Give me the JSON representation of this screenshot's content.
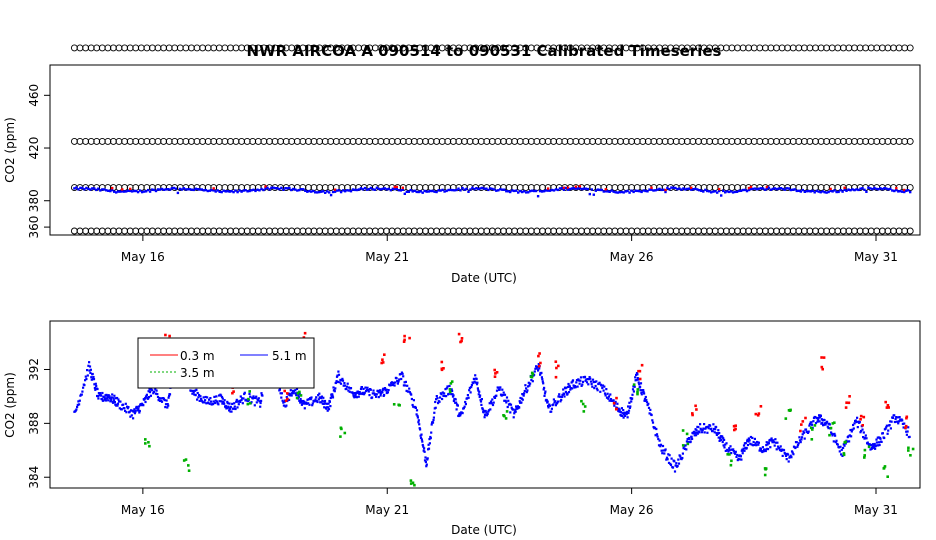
{
  "figure": {
    "title": "NWR   AIRCOA  A    090514  to  090531   Calibrated Timeseries"
  },
  "colors": {
    "calibration": "#000000",
    "inlet_0_3m": "#ff0000",
    "inlet_3_5m": "#00b000",
    "inlet_5_1m": "#0000ff",
    "frame": "#000000",
    "background": "#ffffff"
  },
  "chart_data": [
    {
      "type": "scatter",
      "title": "NWR   AIRCOA  A    090514  to  090531   Calibrated Timeseries",
      "xlabel": "Date (UTC)",
      "ylabel": "CO2 (ppm)",
      "x_ticks": [
        "May 16",
        "May 21",
        "May 26",
        "May 31"
      ],
      "x_tick_days": [
        16,
        21,
        26,
        31
      ],
      "xlim_days": [
        14.1,
        31.9
      ],
      "y_ticks": [
        360,
        380,
        420,
        460
      ],
      "ylim": [
        354,
        483
      ],
      "grid": false,
      "legend": "none",
      "series": [
        {
          "name": "",
          "role": "calibration",
          "marker": "open-circle",
          "y": 496,
          "x_range_days": [
            14.6,
            31.7
          ]
        },
        {
          "name": "",
          "role": "calibration",
          "marker": "open-circle",
          "y": 425,
          "x_range_days": [
            14.6,
            31.7
          ]
        },
        {
          "name": "",
          "role": "calibration",
          "marker": "open-circle",
          "y": 390,
          "x_range_days": [
            14.6,
            31.7
          ]
        },
        {
          "name": "",
          "role": "calibration",
          "marker": "open-circle",
          "y": 357,
          "x_range_days": [
            14.6,
            31.7
          ]
        },
        {
          "name": "",
          "role": "ambient",
          "marker": "dot",
          "y_approx": 388,
          "x_range_days": [
            14.6,
            31.7
          ]
        }
      ]
    },
    {
      "type": "scatter",
      "xlabel": "Date (UTC)",
      "ylabel": "CO2 (ppm)",
      "x_ticks": [
        "May 16",
        "May 21",
        "May 26",
        "May 31"
      ],
      "x_tick_days": [
        16,
        21,
        26,
        31
      ],
      "xlim_days": [
        14.1,
        31.9
      ],
      "y_ticks": [
        384,
        388,
        392
      ],
      "ylim": [
        383.2,
        395.6
      ],
      "grid": false,
      "legend": "top-left",
      "legend_entries": [
        "0.3 m",
        "5.1 m",
        "3.5 m"
      ],
      "series": [
        {
          "name": "5.1 m",
          "color": "#0000ff",
          "x_days": [
            14.6,
            14.9,
            15.1,
            15.3,
            15.5,
            15.8,
            16.0,
            16.2,
            16.5,
            16.7,
            17.0,
            17.3,
            17.6,
            17.8,
            18.1,
            18.4,
            18.6,
            18.9,
            19.1,
            19.3,
            19.6,
            19.8,
            20.0,
            20.3,
            20.5,
            20.8,
            21.0,
            21.3,
            21.6,
            21.8,
            22.0,
            22.3,
            22.5,
            22.8,
            23.0,
            23.3,
            23.6,
            23.8,
            24.1,
            24.3,
            24.6,
            24.8,
            25.1,
            25.4,
            25.7,
            25.9,
            26.1,
            26.3,
            26.6,
            26.9,
            27.2,
            27.4,
            27.7,
            27.9,
            28.2,
            28.4,
            28.7,
            28.9,
            29.2,
            29.5,
            29.8,
            30.0,
            30.3,
            30.6,
            30.9,
            31.1,
            31.4,
            31.7
          ],
          "y": [
            388.6,
            392.2,
            389.9,
            390.0,
            389.5,
            388.7,
            389.4,
            390.6,
            389.3,
            392.8,
            390.4,
            389.6,
            389.8,
            389.1,
            390.0,
            389.5,
            393.0,
            389.4,
            390.7,
            389.3,
            389.9,
            389.2,
            391.5,
            390.2,
            390.4,
            390.1,
            390.5,
            391.5,
            389.0,
            385.0,
            389.7,
            390.6,
            388.4,
            391.5,
            388.6,
            390.6,
            388.6,
            390.3,
            392.3,
            389.0,
            390.2,
            390.9,
            391.2,
            390.6,
            389.2,
            388.5,
            391.5,
            389.6,
            386.2,
            384.7,
            386.9,
            387.6,
            387.6,
            386.4,
            385.3,
            386.8,
            386.1,
            386.7,
            385.4,
            387.0,
            388.4,
            388.0,
            385.8,
            388.2,
            386.2,
            386.8,
            388.5,
            387.2
          ]
        },
        {
          "name": "0.3 m",
          "color": "#ff0000",
          "x_days": [
            16.3,
            16.5,
            17.8,
            18.9,
            19.3,
            20.9,
            21.4,
            22.1,
            22.5,
            23.2,
            24.1,
            24.5,
            25.7,
            26.2,
            27.3,
            28.1,
            28.6,
            29.5,
            29.9,
            30.4,
            30.7,
            31.2,
            31.6
          ],
          "y": [
            393.5,
            394.8,
            391.0,
            390.5,
            395.0,
            393.5,
            395.0,
            392.8,
            394.8,
            392.2,
            393.2,
            392.6,
            390.2,
            392.4,
            389.5,
            387.9,
            389.3,
            388.6,
            393.0,
            390.3,
            388.9,
            389.8,
            388.6
          ]
        },
        {
          "name": "3.5 m",
          "color": "#00b000",
          "x_days": [
            16.1,
            16.9,
            18.2,
            19.2,
            20.1,
            21.2,
            21.5,
            22.3,
            23.4,
            24.0,
            25.0,
            26.1,
            27.1,
            28.0,
            28.7,
            29.2,
            29.7,
            30.1,
            30.4,
            30.8,
            31.2,
            31.7
          ],
          "y": [
            387.0,
            385.5,
            390.6,
            390.7,
            388.0,
            390.0,
            384.3,
            391.5,
            389.5,
            392.0,
            390.0,
            391.0,
            387.5,
            386.0,
            384.7,
            389.0,
            387.9,
            388.2,
            386.7,
            386.5,
            385.0,
            386.8
          ]
        }
      ]
    }
  ]
}
